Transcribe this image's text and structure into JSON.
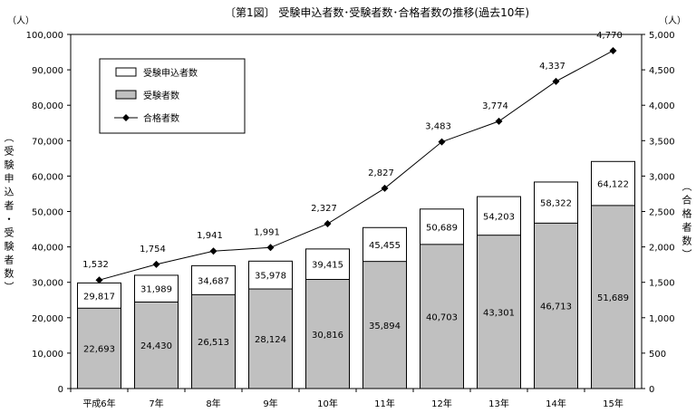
{
  "chart_data": {
    "type": "bar+line",
    "title": "〔第1図〕 受験申込者数･受験者数･合格者数の推移(過去10年)",
    "left_unit": "（人）",
    "right_unit": "（人）",
    "ylabel_left": "（受験申込者・受験者数）",
    "ylabel_right": "（合格者数）",
    "categories": [
      "平成6年",
      "7年",
      "8年",
      "9年",
      "10年",
      "11年",
      "12年",
      "13年",
      "14年",
      "15年"
    ],
    "ylim_left": [
      0,
      100000
    ],
    "ylim_right": [
      0,
      5000
    ],
    "yticks_left": [
      "0",
      "10,000",
      "20,000",
      "30,000",
      "40,000",
      "50,000",
      "60,000",
      "70,000",
      "80,000",
      "90,000",
      "100,000"
    ],
    "yticks_right": [
      "0",
      "500",
      "1,000",
      "1,500",
      "2,000",
      "2,500",
      "3,000",
      "3,500",
      "4,000",
      "4,500",
      "5,000"
    ],
    "grid": false,
    "legend_placement": "top-left",
    "series": [
      {
        "name": "受験申込者数",
        "type": "bar",
        "axis": "left",
        "color": "#ffffff",
        "values": [
          29817,
          31989,
          34687,
          35978,
          39415,
          45455,
          50689,
          54203,
          58322,
          64122
        ],
        "labels": [
          "29,817",
          "31,989",
          "34,687",
          "35,978",
          "39,415",
          "45,455",
          "50,689",
          "54,203",
          "58,322",
          "64,122"
        ]
      },
      {
        "name": "受験者数",
        "type": "bar",
        "axis": "left",
        "color": "#c0c0c0",
        "values": [
          22693,
          24430,
          26513,
          28124,
          30816,
          35894,
          40703,
          43301,
          46713,
          51689
        ],
        "labels": [
          "22,693",
          "24,430",
          "26,513",
          "28,124",
          "30,816",
          "35,894",
          "40,703",
          "43,301",
          "46,713",
          "51,689"
        ]
      },
      {
        "name": "合格者数",
        "type": "line",
        "axis": "right",
        "color": "#000000",
        "values": [
          1532,
          1754,
          1941,
          1991,
          2327,
          2827,
          3483,
          3774,
          4337,
          4770
        ],
        "labels": [
          "1,532",
          "1,754",
          "1,941",
          "1,991",
          "2,327",
          "2,827",
          "3,483",
          "3,774",
          "4,337",
          "4,770"
        ]
      }
    ]
  }
}
